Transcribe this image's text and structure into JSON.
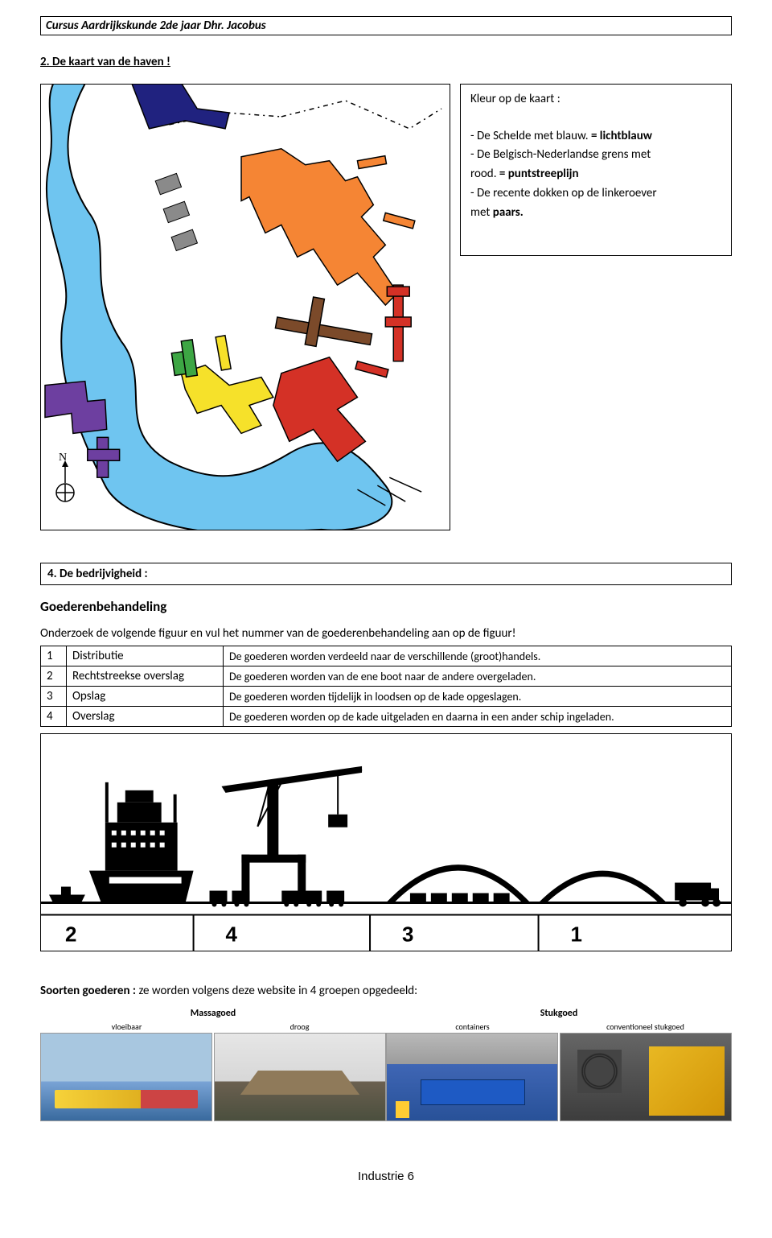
{
  "header": "Cursus Aardrijkskunde 2de jaar  Dhr. Jacobus",
  "section2_title": "2. De kaart van de haven !",
  "instructions": {
    "title": "Kleur op de kaart :",
    "line1a": "- De Schelde met blauw. ",
    "line1b": "= lichtblauw",
    "line2": "- De Belgisch-Nederlandse grens met",
    "line3a": "rood. ",
    "line3b": "= puntstreeplijn",
    "line4": "- De recente dokken op de linkeroever",
    "line5a": "met ",
    "line5b": "paars."
  },
  "section4_title": "4. De bedrijvigheid :",
  "sub_heading": "Goederenbehandeling",
  "intro_text": "Onderzoek de volgende figuur en vul het nummer van de goederenbehandeling aan op de figuur!",
  "table": [
    {
      "n": "1",
      "term": "Distributie",
      "desc": "De goederen worden verdeeld naar de verschillende (groot)handels."
    },
    {
      "n": "2",
      "term": "Rechtstreekse overslag",
      "desc": "De goederen worden van de ene boot naar de andere overgeladen."
    },
    {
      "n": "3",
      "term": "Opslag",
      "desc": "De goederen worden tijdelijk in loodsen op de kade opgeslagen."
    },
    {
      "n": "4",
      "term": "Overslag",
      "desc": "De goederen worden op de kade uitgeladen en daarna in een ander schip ingeladen."
    }
  ],
  "figure_labels": [
    "2",
    "4",
    "3",
    "1"
  ],
  "soorten_pre": "Soorten goederen : ",
  "soorten_post": "ze worden volgens deze website in 4 groepen opgedeeld:",
  "goods": {
    "group1_title": "Massagoed",
    "group1_sub1": "vloeibaar",
    "group1_sub2": "droog",
    "group2_title": "Stukgoed",
    "group2_sub1": "containers",
    "group2_sub2": "conventioneel stukgoed"
  },
  "footer": "Industrie 6",
  "colors": {
    "river": "#6fc5f0",
    "docks_orange": "#f58534",
    "docks_red": "#d43126",
    "docks_yellow": "#f6e12a",
    "docks_green": "#3da644",
    "docks_purple": "#6d3fa0",
    "docks_brown": "#7b4a2a",
    "border_blue": "#20227f",
    "gray_hatch": "#8a8a8a"
  }
}
